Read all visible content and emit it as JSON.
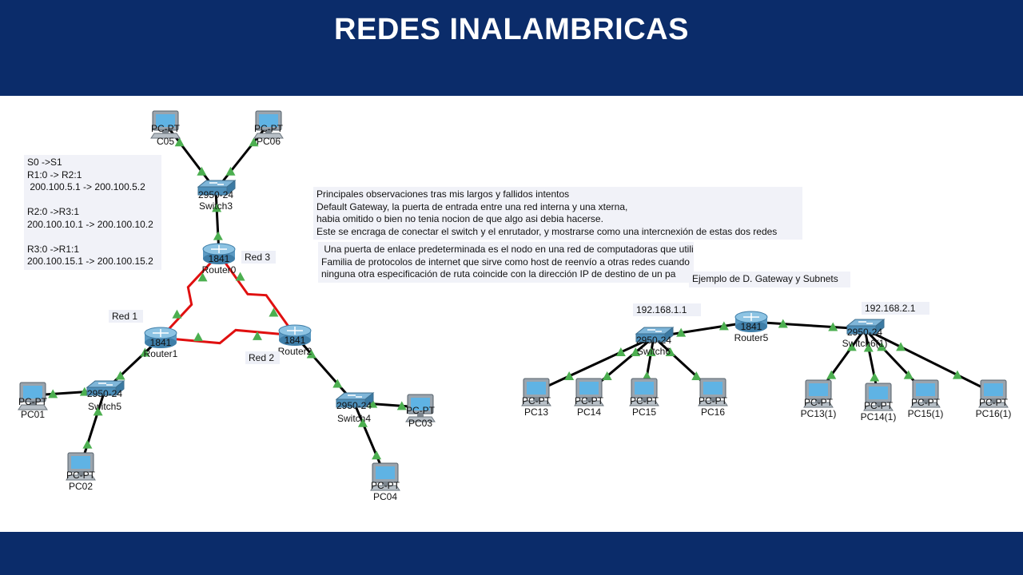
{
  "title": "REDES INALAMBRICAS",
  "colors": {
    "band": "#0b2c6a",
    "serial_link": "#e01010",
    "ethernet_link": "#000000",
    "link_light": "#4caf50"
  },
  "notes": {
    "addressing": "S0 ->S1\nR1:0 -> R2:1\n 200.100.5.1 -> 200.100.5.2\n\nR2:0 ->R3:1\n200.100.10.1 -> 200.100.10.2\n\nR3:0 ->R1:1\n200.100.15.1 -> 200.100.15.2",
    "observations": "Principales observaciones tras mis largos y fallidos intentos\nDefault Gateway, la puerta de entrada entre una red interna y una xterna,\nhabia omitido o bien no tenia nocion de que algo asi debia hacerse.\nEste se encraga de conectar el switch y el enrutador, y mostrarse como una intercnexión de estas dos redes",
    "gateway_definition": " Una puerta de enlace predeterminada es el nodo en una red de computadoras que utiliza la\nFamilia de protocolos de internet que sirve como host de reenvío a otras redes cuando\nninguna otra especificación de ruta coincide con la dirección IP de destino de un pa",
    "example": "Ejemplo de D. Gateway y Subnets"
  },
  "network_labels": {
    "red1": "Red 1",
    "red2": "Red 2",
    "red3": "Red 3",
    "ip1": "192.168.1.1",
    "ip2": "192.168.2.1"
  },
  "devices": [
    {
      "id": "pc_c05",
      "type": "pc",
      "model": "PC-PT",
      "name": "C05"
    },
    {
      "id": "pc06",
      "type": "pc",
      "model": "PC-PT",
      "name": "PC06"
    },
    {
      "id": "switch3",
      "type": "switch",
      "model": "2950-24",
      "name": "Switch3"
    },
    {
      "id": "router0",
      "type": "router",
      "model": "1841",
      "name": "Router0"
    },
    {
      "id": "router1",
      "type": "router",
      "model": "1841",
      "name": "Router1"
    },
    {
      "id": "router2",
      "type": "router",
      "model": "1841",
      "name": "Router2"
    },
    {
      "id": "switch5",
      "type": "switch",
      "model": "2950-24",
      "name": "Switch5"
    },
    {
      "id": "pc01",
      "type": "pc",
      "model": "PC-PT",
      "name": "PC01"
    },
    {
      "id": "pc02",
      "type": "pc",
      "model": "PC-PT",
      "name": "PC02"
    },
    {
      "id": "switch4",
      "type": "switch",
      "model": "2950-24",
      "name": "Switch4"
    },
    {
      "id": "pc03",
      "type": "pc",
      "model": "PC-PT",
      "name": "PC03"
    },
    {
      "id": "pc04",
      "type": "pc",
      "model": "PC-PT",
      "name": "PC04"
    },
    {
      "id": "switch6",
      "type": "switch",
      "model": "2950-24",
      "name": "Switch6"
    },
    {
      "id": "router5",
      "type": "router",
      "model": "1841",
      "name": "Router5"
    },
    {
      "id": "switch6_1",
      "type": "switch",
      "model": "2950-24",
      "name": "Switch6(1)"
    },
    {
      "id": "pc13",
      "type": "pc",
      "model": "PC-PT",
      "name": "PC13"
    },
    {
      "id": "pc14",
      "type": "pc",
      "model": "PC-PT",
      "name": "PC14"
    },
    {
      "id": "pc15",
      "type": "pc",
      "model": "PC-PT",
      "name": "PC15"
    },
    {
      "id": "pc16",
      "type": "pc",
      "model": "PC-PT",
      "name": "PC16"
    },
    {
      "id": "pc13_1",
      "type": "pc",
      "model": "PC-PT",
      "name": "PC13(1)"
    },
    {
      "id": "pc14_1",
      "type": "pc",
      "model": "PC-PT",
      "name": "PC14(1)"
    },
    {
      "id": "pc15_1",
      "type": "pc",
      "model": "PC-PT",
      "name": "PC15(1)"
    },
    {
      "id": "pc16_1",
      "type": "pc",
      "model": "PC-PT",
      "name": "PC16(1)"
    }
  ],
  "links": [
    {
      "from": "pc_c05",
      "to": "switch3",
      "kind": "ethernet"
    },
    {
      "from": "pc06",
      "to": "switch3",
      "kind": "ethernet"
    },
    {
      "from": "switch3",
      "to": "router0",
      "kind": "ethernet"
    },
    {
      "from": "router0",
      "to": "router1",
      "kind": "serial"
    },
    {
      "from": "router0",
      "to": "router2",
      "kind": "serial"
    },
    {
      "from": "router1",
      "to": "router2",
      "kind": "serial"
    },
    {
      "from": "router1",
      "to": "switch5",
      "kind": "ethernet"
    },
    {
      "from": "switch5",
      "to": "pc01",
      "kind": "ethernet"
    },
    {
      "from": "switch5",
      "to": "pc02",
      "kind": "ethernet"
    },
    {
      "from": "router2",
      "to": "switch4",
      "kind": "ethernet"
    },
    {
      "from": "switch4",
      "to": "pc03",
      "kind": "ethernet"
    },
    {
      "from": "switch4",
      "to": "pc04",
      "kind": "ethernet"
    },
    {
      "from": "switch6",
      "to": "router5",
      "kind": "ethernet"
    },
    {
      "from": "router5",
      "to": "switch6_1",
      "kind": "ethernet"
    },
    {
      "from": "switch6",
      "to": "pc13",
      "kind": "ethernet"
    },
    {
      "from": "switch6",
      "to": "pc14",
      "kind": "ethernet"
    },
    {
      "from": "switch6",
      "to": "pc15",
      "kind": "ethernet"
    },
    {
      "from": "switch6",
      "to": "pc16",
      "kind": "ethernet"
    },
    {
      "from": "switch6_1",
      "to": "pc13_1",
      "kind": "ethernet"
    },
    {
      "from": "switch6_1",
      "to": "pc14_1",
      "kind": "ethernet"
    },
    {
      "from": "switch6_1",
      "to": "pc15_1",
      "kind": "ethernet"
    },
    {
      "from": "switch6_1",
      "to": "pc16_1",
      "kind": "ethernet"
    }
  ]
}
